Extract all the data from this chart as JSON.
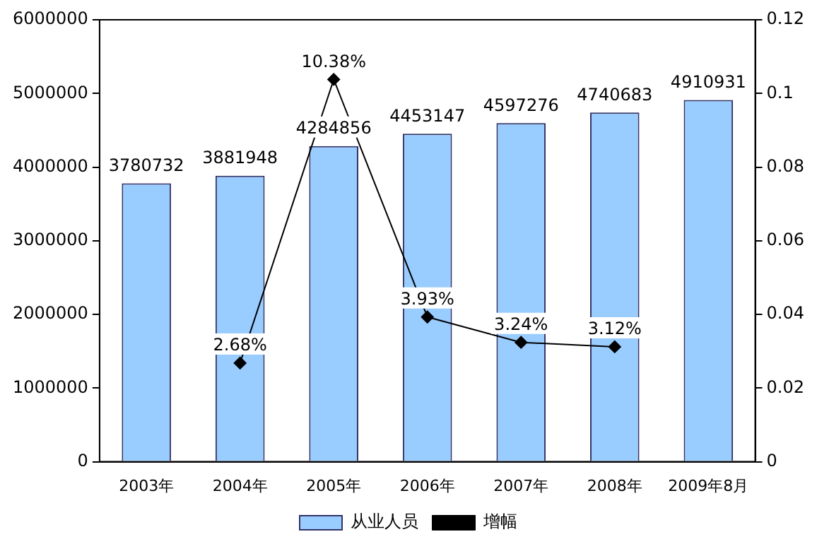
{
  "chart_data": {
    "type": "bar",
    "categories": [
      "2003年",
      "2004年",
      "2005年",
      "2006年",
      "2007年",
      "2008年",
      "2009年8月"
    ],
    "series": [
      {
        "name": "从业人员",
        "color": "#99ccff",
        "values": [
          3780732,
          3881948,
          4284856,
          4453147,
          4597276,
          4740683,
          4910931
        ],
        "value_labels": [
          "3780732",
          "3881948",
          "4284856",
          "4453147",
          "4597276",
          "4740683",
          "4910931"
        ]
      },
      {
        "name": "增幅",
        "type": "line",
        "axis": "y2",
        "color": "#000000",
        "values": [
          null,
          0.0268,
          0.1038,
          0.0393,
          0.0324,
          0.0312,
          null
        ],
        "value_labels": [
          null,
          "2.68%",
          "10.38%",
          "3.93%",
          "3.24%",
          "3.12%",
          null
        ]
      }
    ],
    "ylim": [
      0,
      6000000
    ],
    "yticks": [
      0,
      1000000,
      2000000,
      3000000,
      4000000,
      5000000,
      6000000
    ],
    "y2lim": [
      0,
      0.12
    ],
    "y2ticks": [
      0,
      0.02,
      0.04,
      0.06,
      0.08,
      0.1,
      0.12
    ],
    "grid": false,
    "legend": "bottom",
    "marker": "diamond"
  }
}
